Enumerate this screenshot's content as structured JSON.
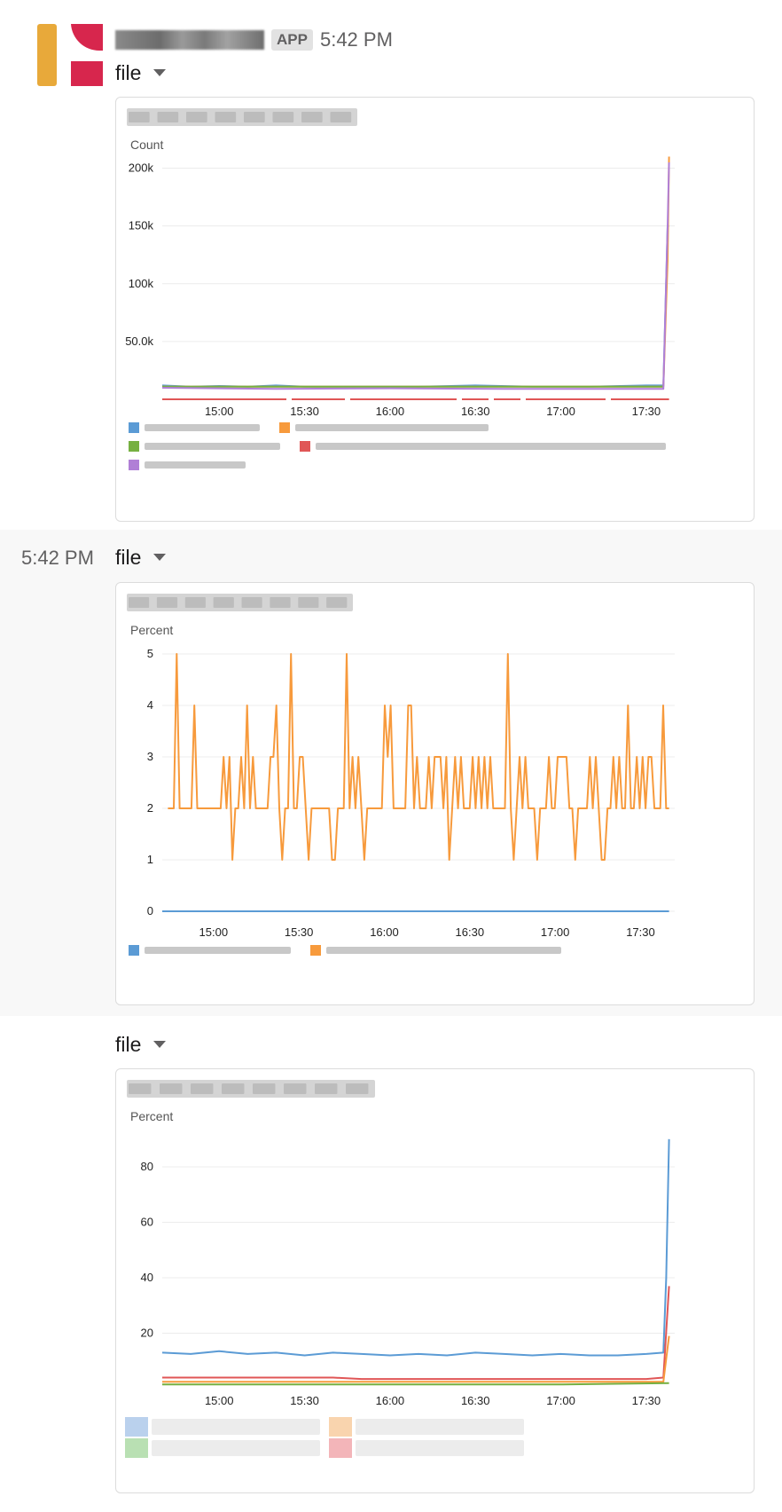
{
  "app": {
    "badge": "APP",
    "time": "5:42 PM"
  },
  "messages": [
    {
      "file_label": "file"
    },
    {
      "file_label": "file",
      "time": "5:42 PM"
    },
    {
      "file_label": "file"
    }
  ],
  "colors": {
    "blue": "#5b9bd5",
    "orange": "#f79a3c",
    "green": "#76b041",
    "red": "#e05656",
    "purple": "#b07fd6",
    "grid": "#ececec"
  },
  "chart_data": [
    {
      "type": "line",
      "ylabel": "Count",
      "yticks": [
        "200k",
        "150k",
        "100k",
        "50.0k"
      ],
      "ytick_values": [
        200000,
        150000,
        100000,
        50000
      ],
      "ylim": [
        0,
        215000
      ],
      "xticks": [
        "15:00",
        "15:30",
        "16:00",
        "16:30",
        "17:00",
        "17:30"
      ],
      "xlim_minutes": [
        -20,
        160
      ],
      "xtick_minutes": [
        0,
        30,
        60,
        90,
        120,
        150
      ],
      "series": [
        {
          "color": "#5b9bd5",
          "points": [
            [
              -20,
              12000
            ],
            [
              -10,
              11000
            ],
            [
              0,
              11500
            ],
            [
              10,
              11000
            ],
            [
              20,
              12000
            ],
            [
              30,
              11000
            ],
            [
              50,
              11000
            ],
            [
              70,
              11000
            ],
            [
              90,
              12000
            ],
            [
              110,
              11000
            ],
            [
              130,
              11000
            ],
            [
              150,
              12000
            ],
            [
              156,
              12000
            ],
            [
              157.5,
              150000
            ],
            [
              158,
              150000
            ]
          ]
        },
        {
          "color": "#f79a3c",
          "points": [
            [
              -20,
              11000
            ],
            [
              156,
              11000
            ],
            [
              157.5,
              120000
            ],
            [
              158,
              210000
            ]
          ]
        },
        {
          "color": "#76b041",
          "points": [
            [
              -20,
              11000
            ],
            [
              156,
              11000
            ]
          ]
        },
        {
          "color": "#e05656",
          "points": [
            [
              -20,
              0
            ],
            [
              158,
              0
            ]
          ],
          "dashed": true
        },
        {
          "color": "#b07fd6",
          "points": [
            [
              -20,
              10000
            ],
            [
              20,
              9000
            ],
            [
              60,
              9500
            ],
            [
              100,
              9000
            ],
            [
              140,
              9000
            ],
            [
              156,
              9000
            ],
            [
              157.5,
              150000
            ],
            [
              158,
              205000
            ]
          ]
        }
      ]
    },
    {
      "type": "line",
      "ylabel": "Percent",
      "yticks": [
        "5",
        "4",
        "3",
        "2",
        "1",
        "0"
      ],
      "ytick_values": [
        5,
        4,
        3,
        2,
        1,
        0
      ],
      "ylim": [
        0,
        5
      ],
      "xticks": [
        "15:00",
        "15:30",
        "16:00",
        "16:30",
        "17:00",
        "17:30"
      ],
      "xlim_minutes": [
        -18,
        162
      ],
      "xtick_minutes": [
        0,
        30,
        60,
        90,
        120,
        150
      ],
      "series": [
        {
          "color": "#5b9bd5",
          "points": [
            [
              -18,
              0
            ],
            [
              160,
              0
            ]
          ]
        },
        {
          "color": "#f79a3c",
          "values": [
            2,
            2,
            2,
            5,
            2,
            2,
            2,
            2,
            2,
            4,
            2,
            2,
            2,
            2,
            2,
            2,
            2,
            2,
            2,
            3,
            2,
            3,
            1,
            2,
            2,
            3,
            2,
            4,
            2,
            3,
            2,
            2,
            2,
            2,
            2,
            3,
            3,
            4,
            2,
            1,
            2,
            2,
            5,
            2,
            2,
            3,
            3,
            2,
            1,
            2,
            2,
            2,
            2,
            2,
            2,
            2,
            1,
            1,
            2,
            2,
            2,
            5,
            2,
            3,
            2,
            3,
            2,
            1,
            2,
            2,
            2,
            2,
            2,
            2,
            4,
            3,
            4,
            2,
            2,
            2,
            2,
            2,
            4,
            4,
            2,
            3,
            2,
            2,
            2,
            3,
            2,
            3,
            3,
            3,
            2,
            3,
            1,
            2,
            3,
            2,
            3,
            2,
            2,
            2,
            3,
            2,
            3,
            2,
            3,
            2,
            3,
            2,
            2,
            2,
            2,
            2,
            5,
            2,
            1,
            2,
            3,
            2,
            3,
            2,
            2,
            2,
            1,
            2,
            2,
            2,
            3,
            2,
            2,
            3,
            3,
            3,
            3,
            2,
            2,
            1,
            2,
            2,
            2,
            2,
            3,
            2,
            3,
            2,
            1,
            1,
            2,
            2,
            3,
            2,
            3,
            2,
            2,
            4,
            2,
            2,
            3,
            2,
            3,
            2,
            3,
            3,
            2,
            2,
            2,
            4,
            2,
            2
          ]
        }
      ]
    },
    {
      "type": "line",
      "ylabel": "Percent",
      "yticks": [
        "80",
        "60",
        "40",
        "20"
      ],
      "ytick_values": [
        80,
        60,
        40,
        20
      ],
      "ylim": [
        0,
        96
      ],
      "xticks": [
        "15:00",
        "15:30",
        "16:00",
        "16:30",
        "17:00",
        "17:30"
      ],
      "xlim_minutes": [
        -20,
        160
      ],
      "xtick_minutes": [
        0,
        30,
        60,
        90,
        120,
        150
      ],
      "series": [
        {
          "color": "#5b9bd5",
          "points": [
            [
              -20,
              13
            ],
            [
              -10,
              12.5
            ],
            [
              0,
              13.5
            ],
            [
              10,
              12.5
            ],
            [
              20,
              13
            ],
            [
              30,
              12
            ],
            [
              40,
              13
            ],
            [
              50,
              12.5
            ],
            [
              60,
              12
            ],
            [
              70,
              12.5
            ],
            [
              80,
              12
            ],
            [
              90,
              13
            ],
            [
              100,
              12.5
            ],
            [
              110,
              12
            ],
            [
              120,
              12.5
            ],
            [
              130,
              12
            ],
            [
              140,
              12
            ],
            [
              150,
              12.5
            ],
            [
              156,
              13
            ],
            [
              157,
              40
            ],
            [
              158,
              90
            ]
          ]
        },
        {
          "color": "#e05656",
          "points": [
            [
              -20,
              4
            ],
            [
              40,
              4
            ],
            [
              50,
              3.5
            ],
            [
              100,
              3.5
            ],
            [
              150,
              3.5
            ],
            [
              156,
              4
            ],
            [
              158,
              37
            ]
          ]
        },
        {
          "color": "#f79a3c",
          "points": [
            [
              -20,
              2.5
            ],
            [
              60,
              2.5
            ],
            [
              120,
              2.5
            ],
            [
              156,
              2.5
            ],
            [
              158,
              19
            ]
          ]
        },
        {
          "color": "#76b041",
          "points": [
            [
              -20,
              1.5
            ],
            [
              60,
              1.5
            ],
            [
              120,
              1.5
            ],
            [
              158,
              2
            ]
          ]
        }
      ]
    }
  ]
}
